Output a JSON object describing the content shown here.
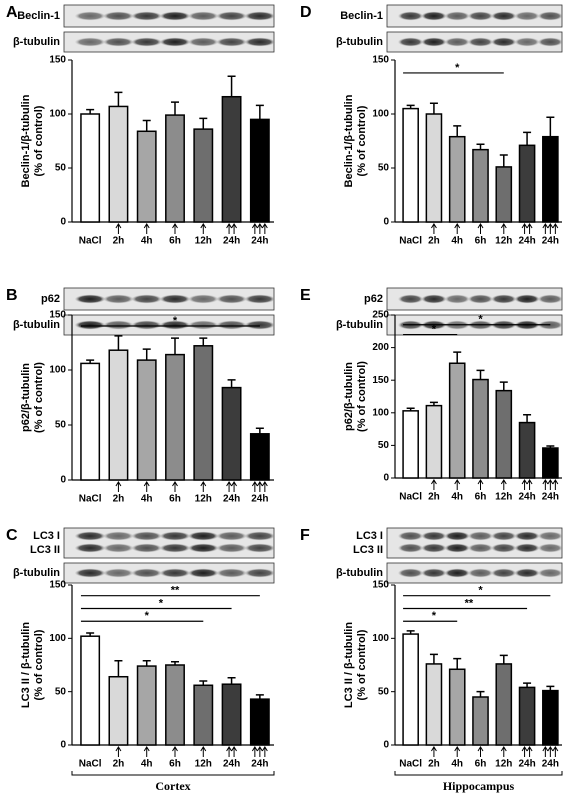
{
  "chart_data": [
    {
      "type": "bar",
      "panel": "A",
      "blots": [
        "Beclin-1",
        "β-tubulin"
      ],
      "ylabel": [
        "Beclin-1/β-tubulin",
        "(% of control)"
      ],
      "categories": [
        "NaCl",
        "2h",
        "4h",
        "6h",
        "12h",
        "24h",
        "24h"
      ],
      "values": [
        100,
        107,
        84,
        99,
        86,
        116,
        95
      ],
      "errors": [
        4,
        13,
        10,
        12,
        10,
        19,
        13
      ],
      "colors": [
        "#ffffff",
        "#d9d9d9",
        "#a6a6a6",
        "#8c8c8c",
        "#6e6e6e",
        "#3c3c3c",
        "#000000"
      ],
      "ylim": [
        0,
        150
      ],
      "yticks": [
        0,
        50,
        100,
        150
      ],
      "significance": []
    },
    {
      "type": "bar",
      "panel": "B",
      "blots": [
        "p62",
        "β-tubulin"
      ],
      "ylabel": [
        "p62/β-tubulin",
        "(% of control)"
      ],
      "categories": [
        "NaCl",
        "2h",
        "4h",
        "6h",
        "12h",
        "24h",
        "24h"
      ],
      "values": [
        106,
        118,
        109,
        114,
        122,
        84,
        42
      ],
      "errors": [
        3,
        13,
        10,
        15,
        7,
        7,
        5
      ],
      "colors": [
        "#ffffff",
        "#d9d9d9",
        "#a6a6a6",
        "#8c8c8c",
        "#6e6e6e",
        "#3c3c3c",
        "#000000"
      ],
      "ylim": [
        0,
        150
      ],
      "yticks": [
        0,
        50,
        100,
        150
      ],
      "significance": [
        "*"
      ]
    },
    {
      "type": "bar",
      "panel": "C",
      "blots": [
        "LC3 I",
        "LC3 II",
        "β-tubulin"
      ],
      "ylabel": [
        "LC3 II / β-tubulin",
        "(% of control)"
      ],
      "categories": [
        "NaCl",
        "2h",
        "4h",
        "6h",
        "12h",
        "24h",
        "24h"
      ],
      "values": [
        102,
        64,
        74,
        75,
        56,
        57,
        43
      ],
      "errors": [
        3,
        15,
        5,
        3,
        4,
        6,
        4
      ],
      "colors": [
        "#ffffff",
        "#d9d9d9",
        "#a6a6a6",
        "#8c8c8c",
        "#6e6e6e",
        "#3c3c3c",
        "#000000"
      ],
      "ylim": [
        0,
        150
      ],
      "yticks": [
        0,
        50,
        100,
        150
      ],
      "significance": [
        "**",
        "*",
        "*"
      ],
      "group": "Cortex"
    },
    {
      "type": "bar",
      "panel": "D",
      "blots": [
        "Beclin-1",
        "β-tubulin"
      ],
      "ylabel": [
        "Beclin-1/β-tubulin",
        "(% of control)"
      ],
      "categories": [
        "NaCl",
        "2h",
        "4h",
        "6h",
        "12h",
        "24h",
        "24h"
      ],
      "values": [
        105,
        100,
        79,
        67,
        51,
        71,
        79
      ],
      "errors": [
        3,
        10,
        10,
        5,
        11,
        12,
        18
      ],
      "colors": [
        "#ffffff",
        "#d9d9d9",
        "#a6a6a6",
        "#8c8c8c",
        "#6e6e6e",
        "#3c3c3c",
        "#000000"
      ],
      "ylim": [
        0,
        150
      ],
      "yticks": [
        0,
        50,
        100,
        150
      ],
      "significance": [
        "*"
      ]
    },
    {
      "type": "bar",
      "panel": "E",
      "blots": [
        "p62",
        "β-tubulin"
      ],
      "ylabel": [
        "p62/β-tubulin",
        "(% of control)"
      ],
      "categories": [
        "NaCl",
        "2h",
        "4h",
        "6h",
        "12h",
        "24h",
        "24h"
      ],
      "values": [
        103,
        111,
        176,
        151,
        134,
        85,
        46
      ],
      "errors": [
        4,
        5,
        17,
        14,
        13,
        12,
        3
      ],
      "colors": [
        "#ffffff",
        "#d9d9d9",
        "#a6a6a6",
        "#8c8c8c",
        "#6e6e6e",
        "#3c3c3c",
        "#000000"
      ],
      "ylim": [
        0,
        250
      ],
      "yticks": [
        0,
        50,
        100,
        150,
        200,
        250
      ],
      "significance": [
        "*",
        "*"
      ]
    },
    {
      "type": "bar",
      "panel": "F",
      "blots": [
        "LC3 I",
        "LC3 II",
        "β-tubulin"
      ],
      "ylabel": [
        "LC3 II / β-tubulin",
        "(% of control)"
      ],
      "categories": [
        "NaCl",
        "2h",
        "4h",
        "6h",
        "12h",
        "24h",
        "24h"
      ],
      "values": [
        104,
        76,
        71,
        45,
        76,
        54,
        51
      ],
      "errors": [
        3,
        9,
        10,
        5,
        8,
        4,
        4
      ],
      "colors": [
        "#ffffff",
        "#d9d9d9",
        "#a6a6a6",
        "#8c8c8c",
        "#6e6e6e",
        "#3c3c3c",
        "#000000"
      ],
      "ylim": [
        0,
        150
      ],
      "yticks": [
        0,
        50,
        100,
        150
      ],
      "significance": [
        "*",
        "**",
        "*"
      ],
      "group": "Hippocampus"
    }
  ]
}
